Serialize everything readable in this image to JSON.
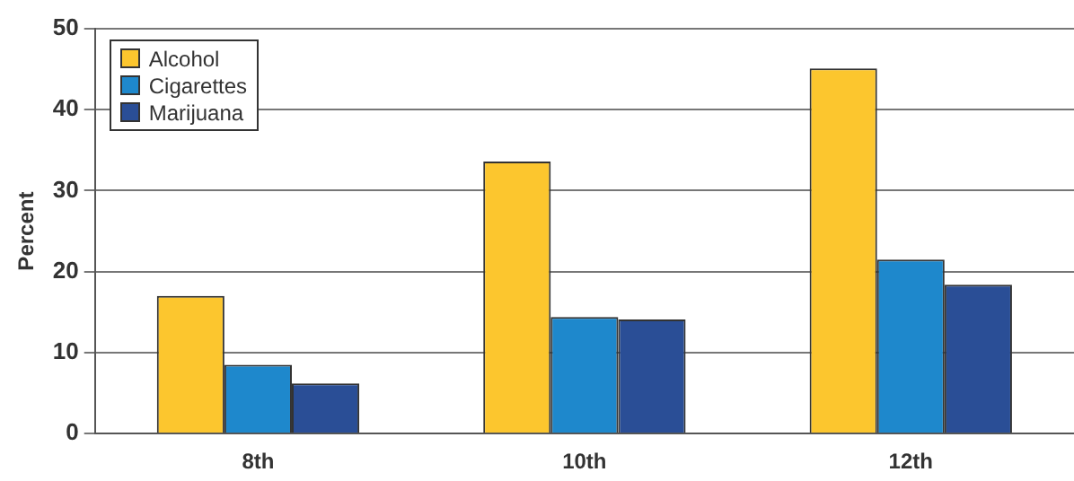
{
  "chart_data": {
    "type": "bar",
    "ylabel": "Percent",
    "categories": [
      "8th",
      "10th",
      "12th"
    ],
    "series": [
      {
        "name": "Alcohol",
        "color": "#fcc62e",
        "values": [
          17.0,
          33.6,
          45.1
        ]
      },
      {
        "name": "Cigarettes",
        "color": "#1e88cc",
        "values": [
          8.5,
          14.4,
          21.5
        ]
      },
      {
        "name": "Marijuana",
        "color": "#2a4e96",
        "values": [
          6.2,
          14.1,
          18.4
        ]
      }
    ],
    "ylim": [
      0,
      50
    ],
    "yticks": [
      0,
      10,
      20,
      30,
      40,
      50
    ],
    "grid": "y",
    "legend": "top left"
  }
}
